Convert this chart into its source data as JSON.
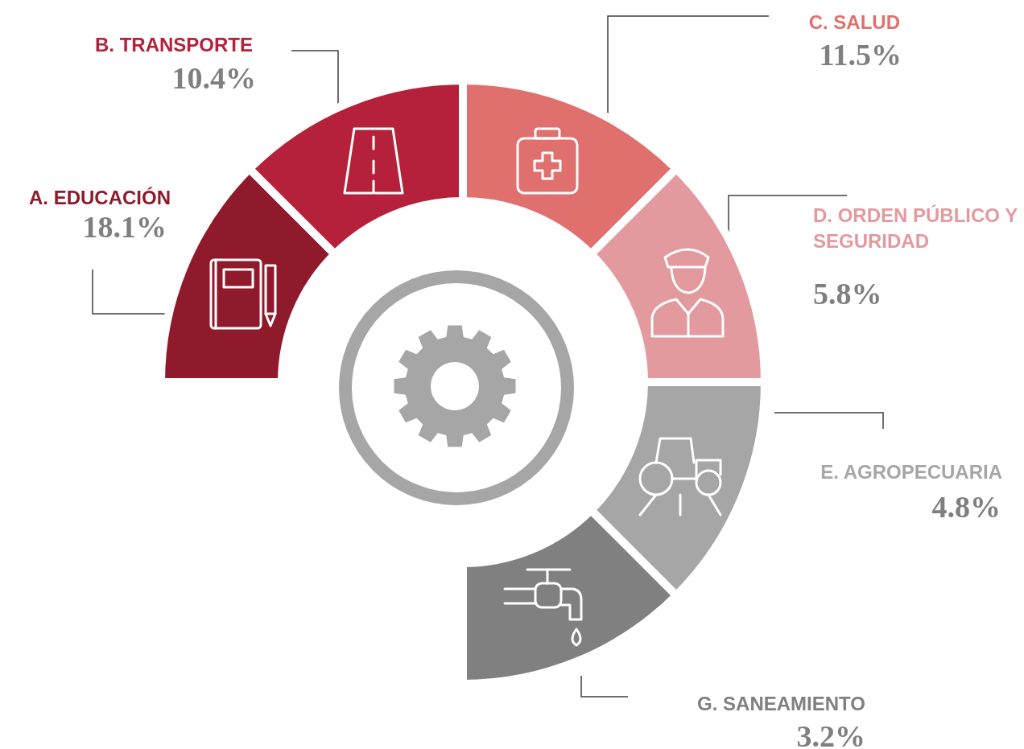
{
  "chart_data": {
    "type": "other",
    "categories": [
      "A. EDUCACIÓN",
      "B. TRANSPORTE",
      "C. SALUD",
      "D. ORDEN PÚBLICO Y SEGURIDAD",
      "E. AGROPECUARIA",
      "G. SANEAMIENTO"
    ],
    "values": [
      18.1,
      10.4,
      11.5,
      5.8,
      4.8,
      3.2
    ],
    "value_labels": [
      "18.1%",
      "10.4%",
      "11.5%",
      "5.8%",
      "4.8%",
      "3.2%"
    ],
    "colors": [
      "#8f1a2c",
      "#b5213a",
      "#e0706e",
      "#e39a9e",
      "#a6a6a6",
      "#808080"
    ]
  }
}
